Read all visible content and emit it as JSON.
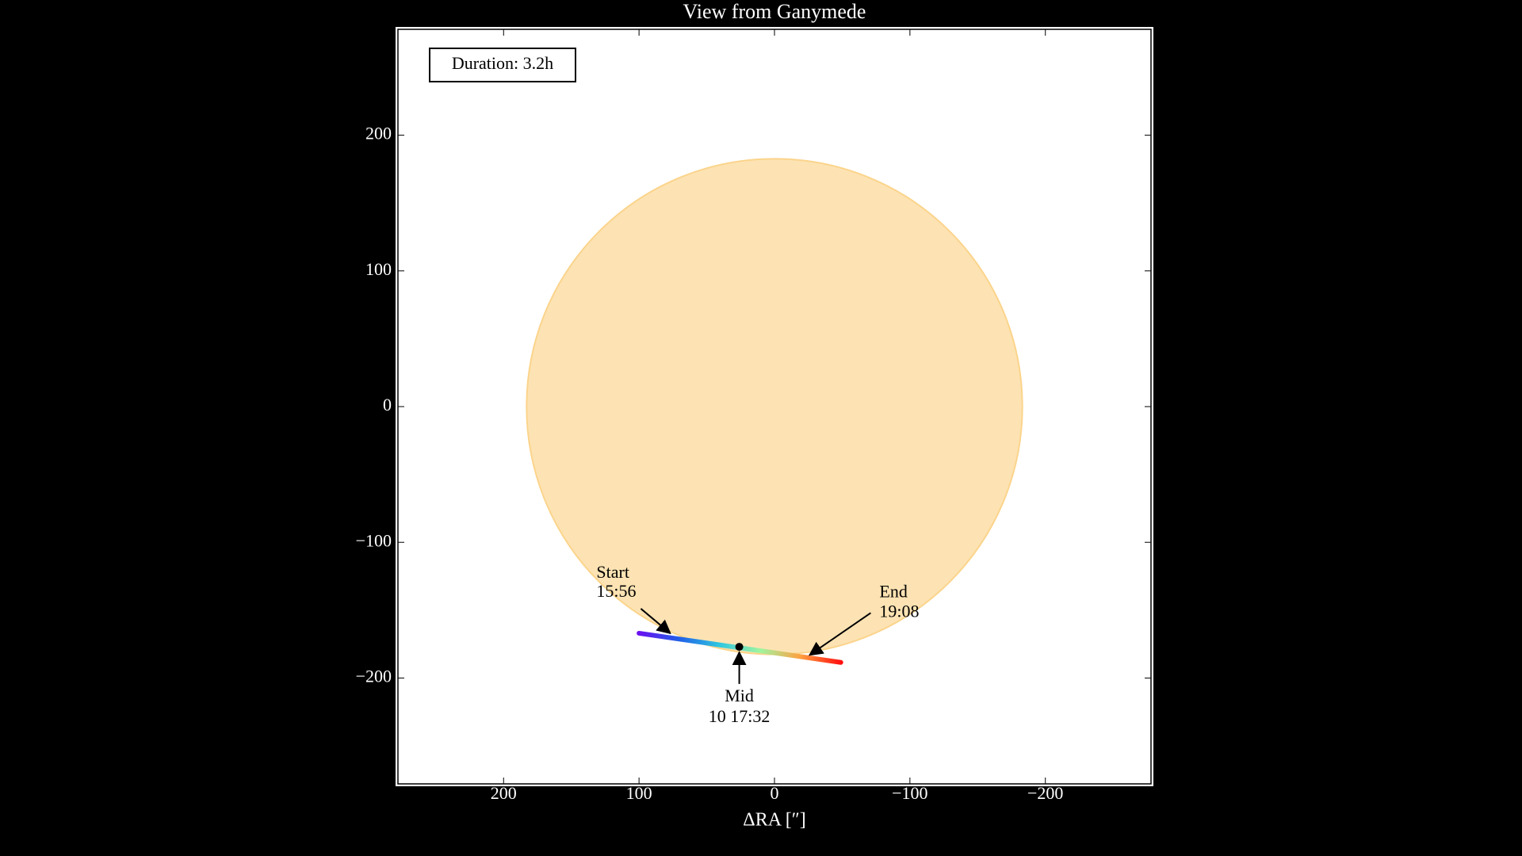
{
  "chart_data": {
    "type": "transit",
    "title": "View from Ganymede",
    "x_label": "ΔRA [″]",
    "xlim": [
      278,
      -278
    ],
    "ylim": [
      -278,
      278
    ],
    "xticks": [
      200,
      100,
      0,
      {
        "value": -100,
        "label": "−100"
      },
      {
        "value": -200,
        "label": "−200"
      }
    ],
    "yticks": [
      200,
      100,
      0,
      {
        "value": -100,
        "label": "−100"
      },
      {
        "value": -200,
        "label": "−200"
      }
    ],
    "grid": true,
    "body": {
      "center": [
        0,
        0
      ],
      "radius": 183,
      "color": "#fde3b3",
      "edge_color": "#fbd48c"
    },
    "track": {
      "x": [
        100,
        -49
      ],
      "y": [
        -167,
        -188.5
      ],
      "colors": [
        "#6a10f0",
        "#2060e8",
        "#30c8e0",
        "#a0f5a0",
        "#ffa040",
        "#ff1010"
      ]
    },
    "mid": {
      "x": 26,
      "y": -177
    },
    "annotations": [
      {
        "lines": [
          "Start",
          "15:56"
        ],
        "xy": [
          77,
          -167
        ]
      },
      {
        "lines": [
          "End",
          "19:08"
        ],
        "xy": [
          -26,
          -183
        ]
      },
      {
        "lines": [
          "Mid",
          "10 17:32"
        ],
        "xy": [
          26,
          -181
        ]
      }
    ],
    "info_box": "Duration:  3.2h"
  }
}
